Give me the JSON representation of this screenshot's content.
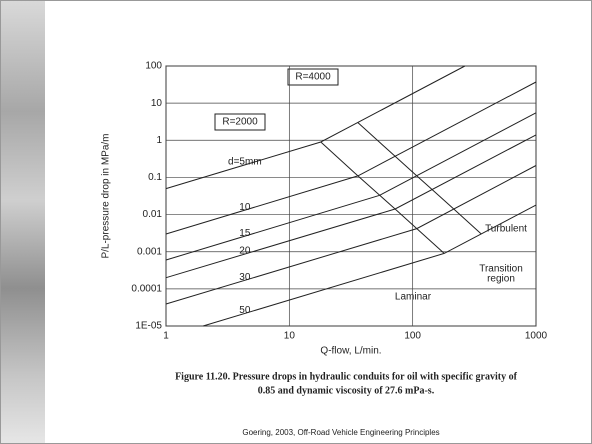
{
  "chart_data": {
    "type": "line",
    "log_x": true,
    "log_y": true,
    "grid": true,
    "x_label": "Q-flow, L/min.",
    "y_label": "P/L-pressure drop in MPa/m",
    "xlim": [
      1,
      1000
    ],
    "xticks": [
      1,
      10,
      100,
      1000
    ],
    "ylim": [
      1e-05,
      100
    ],
    "yticks": [
      {
        "value": 1e-05,
        "label": "1E-05"
      },
      0.0001,
      0.001,
      0.01,
      0.1,
      1,
      10,
      100
    ],
    "series": [
      {
        "name": "d=5mm",
        "color": "#222222",
        "x": [
          1,
          18,
          265
        ],
        "values": [
          0.05,
          0.9,
          100
        ]
      },
      {
        "name": "10",
        "color": "#222222",
        "x": [
          1,
          36,
          1000
        ],
        "values": [
          0.003,
          0.11,
          37
        ]
      },
      {
        "name": "15",
        "color": "#222222",
        "x": [
          1,
          54,
          1000
        ],
        "values": [
          0.0006,
          0.033,
          5.5
        ]
      },
      {
        "name": "20",
        "color": "#222222",
        "x": [
          1,
          72,
          1000
        ],
        "values": [
          0.0002,
          0.0141,
          1.4
        ]
      },
      {
        "name": "30",
        "color": "#222222",
        "x": [
          1,
          108,
          1000
        ],
        "values": [
          3.9e-05,
          0.0042,
          0.21
        ]
      },
      {
        "name": "50",
        "color": "#222222",
        "x": [
          2,
          180,
          1000
        ],
        "values": [
          1e-05,
          0.0009,
          0.018
        ]
      },
      {
        "name": "R=2000",
        "color": "#222222",
        "x": [
          18,
          36,
          54,
          72,
          108,
          180
        ],
        "values": [
          0.9,
          0.11,
          0.033,
          0.0141,
          0.0042,
          0.0009
        ]
      },
      {
        "name": "R=4000",
        "color": "#222222",
        "x": [
          36,
          72,
          108,
          144,
          216,
          360
        ],
        "values": [
          3.0,
          0.37,
          0.11,
          0.047,
          0.014,
          0.003
        ]
      }
    ],
    "annotations": [
      "R=4000",
      "R=2000",
      "Turbulent",
      "Transition",
      "region",
      "Laminar"
    ],
    "caption": [
      "Figure 11.20. Pressure drops in hydraulic conduits for oil with specific gravity of",
      "0.85 and dynamic viscosity of 27.6 mPa-s."
    ],
    "source": "Goering, 2003, Off-Road Vehicle Engineering Principles"
  }
}
